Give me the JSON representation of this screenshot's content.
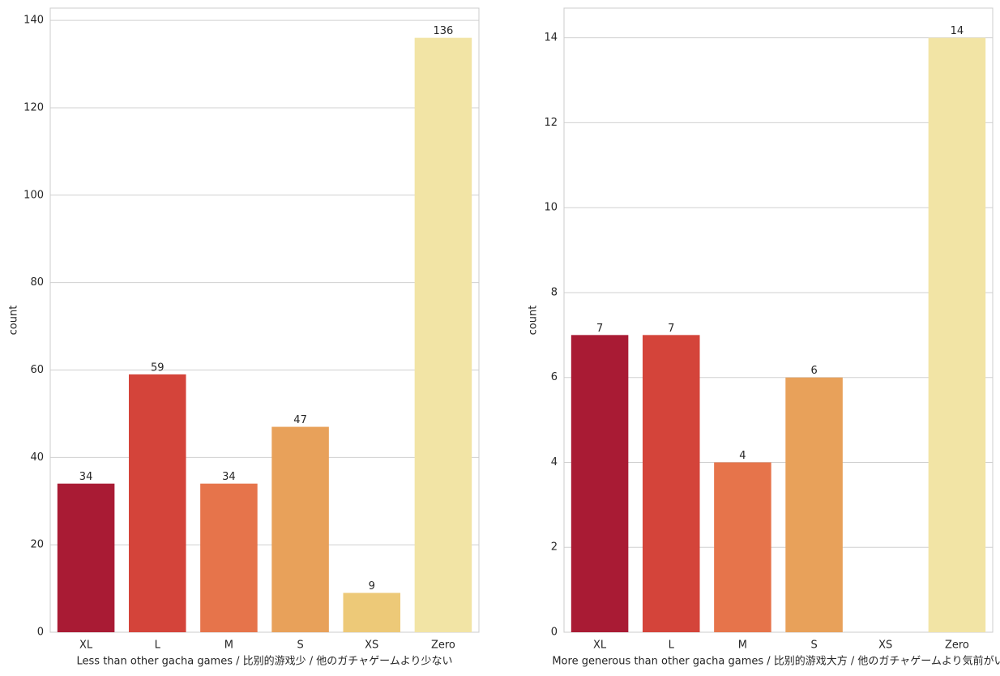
{
  "chart_data": [
    {
      "type": "bar",
      "x_label": "Less than other gacha games / 比别的游戏少 / 他のガチャゲームより少ない",
      "y_label": "count",
      "categories": [
        "XL",
        "L",
        "M",
        "S",
        "XS",
        "Zero"
      ],
      "values": [
        34,
        59,
        34,
        47,
        9,
        136
      ],
      "colors": [
        "#a91b34",
        "#d4443a",
        "#e6744b",
        "#e8a15a",
        "#edc978",
        "#f2e4a5"
      ],
      "ylim": [
        0,
        142.8
      ],
      "yticks": [
        0,
        20,
        40,
        60,
        80,
        100,
        120,
        140
      ],
      "grid": true
    },
    {
      "type": "bar",
      "x_label": "More generous than other gacha games / 比别的游戏大方 / 他のガチャゲームより気前がい",
      "y_label": "count",
      "categories": [
        "XL",
        "L",
        "M",
        "S",
        "XS",
        "Zero"
      ],
      "values": [
        7,
        7,
        4,
        6,
        null,
        14
      ],
      "colors": [
        "#a91b34",
        "#d4443a",
        "#e6744b",
        "#e8a15a",
        "#edc978",
        "#f2e4a5"
      ],
      "ylim": [
        0,
        14.7
      ],
      "yticks": [
        0,
        2,
        4,
        6,
        8,
        10,
        12,
        14
      ],
      "grid": true
    }
  ]
}
